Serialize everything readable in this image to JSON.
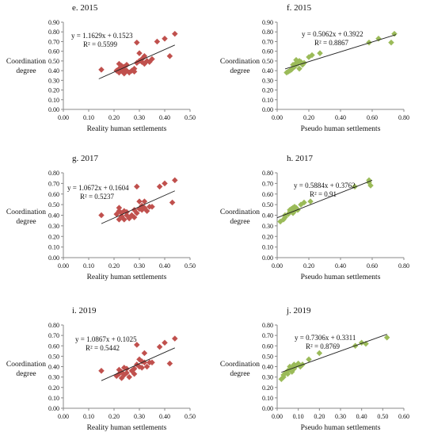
{
  "chart_data": [
    {
      "id": "e",
      "type": "scatter",
      "title": "e. 2015",
      "xlabel": "Reality  human settlements",
      "ylabel_lines": [
        "Coordination",
        "degree"
      ],
      "xlim": [
        0,
        0.5
      ],
      "xticks": [
        0,
        0.1,
        0.2,
        0.3,
        0.4,
        0.5
      ],
      "ylim": [
        0,
        0.9
      ],
      "yticks": [
        0,
        0.1,
        0.2,
        0.3,
        0.4,
        0.5,
        0.6,
        0.7,
        0.8,
        0.9
      ],
      "marker_color": "#c0504d",
      "marker": "diamond",
      "equation": "y = 1.1629x + 0.1523",
      "r2_label": "R² = 0.5599",
      "trendline": {
        "slope": 1.1629,
        "intercept": 0.1523,
        "x_range": [
          0.14,
          0.44
        ]
      },
      "points": [
        [
          0.15,
          0.41
        ],
        [
          0.21,
          0.4
        ],
        [
          0.22,
          0.38
        ],
        [
          0.22,
          0.42
        ],
        [
          0.22,
          0.47
        ],
        [
          0.23,
          0.4
        ],
        [
          0.23,
          0.43
        ],
        [
          0.23,
          0.45
        ],
        [
          0.24,
          0.37
        ],
        [
          0.24,
          0.41
        ],
        [
          0.24,
          0.44
        ],
        [
          0.25,
          0.4
        ],
        [
          0.25,
          0.46
        ],
        [
          0.26,
          0.38
        ],
        [
          0.27,
          0.4
        ],
        [
          0.28,
          0.39
        ],
        [
          0.28,
          0.42
        ],
        [
          0.29,
          0.48
        ],
        [
          0.29,
          0.69
        ],
        [
          0.3,
          0.5
        ],
        [
          0.3,
          0.58
        ],
        [
          0.31,
          0.49
        ],
        [
          0.31,
          0.52
        ],
        [
          0.32,
          0.47
        ],
        [
          0.32,
          0.55
        ],
        [
          0.33,
          0.5
        ],
        [
          0.34,
          0.49
        ],
        [
          0.35,
          0.52
        ],
        [
          0.37,
          0.7
        ],
        [
          0.4,
          0.73
        ],
        [
          0.42,
          0.55
        ],
        [
          0.44,
          0.78
        ]
      ]
    },
    {
      "id": "f",
      "type": "scatter",
      "title": "f. 2015",
      "xlabel": "Pseudo human settlements",
      "ylabel_lines": [
        "Coordination",
        "degree"
      ],
      "xlim": [
        0,
        0.8
      ],
      "xticks": [
        0,
        0.2,
        0.4,
        0.6,
        0.8
      ],
      "ylim": [
        0,
        0.9
      ],
      "yticks": [
        0,
        0.1,
        0.2,
        0.3,
        0.4,
        0.5,
        0.6,
        0.7,
        0.8,
        0.9
      ],
      "marker_color": "#9bbb59",
      "marker": "diamond",
      "equation": "y = 0.5062x + 0.3922",
      "r2_label": "R² = 0.8867",
      "trendline": {
        "slope": 0.5062,
        "intercept": 0.3922,
        "x_range": [
          0.05,
          0.75
        ]
      },
      "points": [
        [
          0.06,
          0.38
        ],
        [
          0.07,
          0.39
        ],
        [
          0.08,
          0.4
        ],
        [
          0.09,
          0.41
        ],
        [
          0.1,
          0.43
        ],
        [
          0.1,
          0.46
        ],
        [
          0.11,
          0.44
        ],
        [
          0.12,
          0.48
        ],
        [
          0.12,
          0.51
        ],
        [
          0.13,
          0.47
        ],
        [
          0.14,
          0.5
        ],
        [
          0.14,
          0.42
        ],
        [
          0.15,
          0.49
        ],
        [
          0.16,
          0.46
        ],
        [
          0.17,
          0.48
        ],
        [
          0.2,
          0.54
        ],
        [
          0.22,
          0.56
        ],
        [
          0.27,
          0.58
        ],
        [
          0.58,
          0.69
        ],
        [
          0.64,
          0.73
        ],
        [
          0.72,
          0.69
        ],
        [
          0.74,
          0.78
        ]
      ]
    },
    {
      "id": "g",
      "type": "scatter",
      "title": "g. 2017",
      "xlabel": "Reality  human settlements",
      "ylabel_lines": [
        "Coordination",
        "degree"
      ],
      "xlim": [
        0,
        0.5
      ],
      "xticks": [
        0,
        0.1,
        0.2,
        0.3,
        0.4,
        0.5
      ],
      "ylim": [
        0,
        0.8
      ],
      "yticks": [
        0,
        0.1,
        0.2,
        0.3,
        0.4,
        0.5,
        0.6,
        0.7,
        0.8
      ],
      "marker_color": "#c0504d",
      "marker": "diamond",
      "equation": "y = 1.0672x + 0.1604",
      "r2_label": "R² = 0.5237",
      "trendline": {
        "slope": 1.0672,
        "intercept": 0.1604,
        "x_range": [
          0.15,
          0.44
        ]
      },
      "points": [
        [
          0.15,
          0.4
        ],
        [
          0.21,
          0.41
        ],
        [
          0.22,
          0.36
        ],
        [
          0.22,
          0.44
        ],
        [
          0.22,
          0.47
        ],
        [
          0.23,
          0.39
        ],
        [
          0.23,
          0.42
        ],
        [
          0.24,
          0.36
        ],
        [
          0.24,
          0.44
        ],
        [
          0.25,
          0.4
        ],
        [
          0.25,
          0.43
        ],
        [
          0.26,
          0.37
        ],
        [
          0.27,
          0.4
        ],
        [
          0.28,
          0.38
        ],
        [
          0.28,
          0.45
        ],
        [
          0.29,
          0.42
        ],
        [
          0.29,
          0.67
        ],
        [
          0.3,
          0.46
        ],
        [
          0.3,
          0.53
        ],
        [
          0.31,
          0.45
        ],
        [
          0.31,
          0.49
        ],
        [
          0.32,
          0.47
        ],
        [
          0.32,
          0.53
        ],
        [
          0.33,
          0.44
        ],
        [
          0.34,
          0.48
        ],
        [
          0.35,
          0.48
        ],
        [
          0.38,
          0.67
        ],
        [
          0.4,
          0.7
        ],
        [
          0.43,
          0.52
        ],
        [
          0.44,
          0.73
        ]
      ]
    },
    {
      "id": "h",
      "type": "scatter",
      "title": "h. 2017",
      "xlabel": "Pseudo human settlements",
      "ylabel_lines": [
        "Coordination",
        "degree"
      ],
      "xlim": [
        0,
        0.8
      ],
      "xticks": [
        0,
        0.2,
        0.4,
        0.6,
        0.8
      ],
      "ylim": [
        0,
        0.8
      ],
      "yticks": [
        0,
        0.1,
        0.2,
        0.3,
        0.4,
        0.5,
        0.6,
        0.7,
        0.8
      ],
      "marker_color": "#9bbb59",
      "marker": "diamond",
      "equation": "y = 0.5884x + 0.3762",
      "r2_label": "R² = 0.91",
      "trendline": {
        "slope": 0.5884,
        "intercept": 0.3762,
        "x_range": [
          0.0,
          0.6
        ]
      },
      "points": [
        [
          0.02,
          0.34
        ],
        [
          0.04,
          0.36
        ],
        [
          0.05,
          0.38
        ],
        [
          0.05,
          0.4
        ],
        [
          0.07,
          0.41
        ],
        [
          0.08,
          0.43
        ],
        [
          0.08,
          0.45
        ],
        [
          0.09,
          0.46
        ],
        [
          0.1,
          0.42
        ],
        [
          0.1,
          0.47
        ],
        [
          0.11,
          0.44
        ],
        [
          0.11,
          0.48
        ],
        [
          0.12,
          0.47
        ],
        [
          0.13,
          0.45
        ],
        [
          0.15,
          0.5
        ],
        [
          0.17,
          0.52
        ],
        [
          0.21,
          0.53
        ],
        [
          0.49,
          0.67
        ],
        [
          0.58,
          0.71
        ],
        [
          0.58,
          0.73
        ],
        [
          0.59,
          0.68
        ]
      ]
    },
    {
      "id": "i",
      "type": "scatter",
      "title": "i. 2019",
      "xlabel": "Reality  human settlements",
      "ylabel_lines": [
        "Coordination",
        "degree"
      ],
      "xlim": [
        0,
        0.5
      ],
      "xticks": [
        0,
        0.1,
        0.2,
        0.3,
        0.4,
        0.5
      ],
      "ylim": [
        0,
        0.8
      ],
      "yticks": [
        0,
        0.1,
        0.2,
        0.3,
        0.4,
        0.5,
        0.6,
        0.7,
        0.8
      ],
      "marker_color": "#c0504d",
      "marker": "diamond",
      "equation": "y = 1.0867x + 0.1025",
      "r2_label": "R² = 0.5442",
      "trendline": {
        "slope": 1.0867,
        "intercept": 0.1025,
        "x_range": [
          0.15,
          0.44
        ]
      },
      "points": [
        [
          0.15,
          0.36
        ],
        [
          0.21,
          0.31
        ],
        [
          0.22,
          0.33
        ],
        [
          0.22,
          0.37
        ],
        [
          0.23,
          0.29
        ],
        [
          0.23,
          0.35
        ],
        [
          0.24,
          0.32
        ],
        [
          0.24,
          0.39
        ],
        [
          0.25,
          0.34
        ],
        [
          0.25,
          0.38
        ],
        [
          0.26,
          0.3
        ],
        [
          0.27,
          0.36
        ],
        [
          0.28,
          0.33
        ],
        [
          0.28,
          0.38
        ],
        [
          0.29,
          0.42
        ],
        [
          0.29,
          0.61
        ],
        [
          0.3,
          0.4
        ],
        [
          0.3,
          0.47
        ],
        [
          0.31,
          0.39
        ],
        [
          0.31,
          0.45
        ],
        [
          0.32,
          0.44
        ],
        [
          0.32,
          0.53
        ],
        [
          0.33,
          0.4
        ],
        [
          0.34,
          0.44
        ],
        [
          0.35,
          0.44
        ],
        [
          0.38,
          0.59
        ],
        [
          0.4,
          0.63
        ],
        [
          0.42,
          0.43
        ],
        [
          0.44,
          0.67
        ]
      ]
    },
    {
      "id": "j",
      "type": "scatter",
      "title": "j. 2019",
      "xlabel": "Pseudo human settlements",
      "ylabel_lines": [
        "Coordination",
        "degree"
      ],
      "xlim": [
        0,
        0.6
      ],
      "xticks": [
        0,
        0.1,
        0.2,
        0.3,
        0.4,
        0.5,
        0.6
      ],
      "ylim": [
        0,
        0.8
      ],
      "yticks": [
        0,
        0.1,
        0.2,
        0.3,
        0.4,
        0.5,
        0.6,
        0.7,
        0.8
      ],
      "marker_color": "#9bbb59",
      "marker": "diamond",
      "equation": "y = 0.7306x + 0.3311",
      "r2_label": "R² = 0.8769",
      "trendline": {
        "slope": 0.7306,
        "intercept": 0.3311,
        "x_range": [
          0.02,
          0.52
        ]
      },
      "points": [
        [
          0.02,
          0.28
        ],
        [
          0.03,
          0.3
        ],
        [
          0.03,
          0.32
        ],
        [
          0.04,
          0.34
        ],
        [
          0.05,
          0.33
        ],
        [
          0.05,
          0.36
        ],
        [
          0.06,
          0.37
        ],
        [
          0.06,
          0.4
        ],
        [
          0.07,
          0.35
        ],
        [
          0.07,
          0.39
        ],
        [
          0.08,
          0.42
        ],
        [
          0.08,
          0.38
        ],
        [
          0.09,
          0.41
        ],
        [
          0.1,
          0.43
        ],
        [
          0.11,
          0.4
        ],
        [
          0.12,
          0.42
        ],
        [
          0.15,
          0.47
        ],
        [
          0.2,
          0.53
        ],
        [
          0.37,
          0.6
        ],
        [
          0.4,
          0.63
        ],
        [
          0.42,
          0.62
        ],
        [
          0.52,
          0.68
        ]
      ]
    }
  ]
}
